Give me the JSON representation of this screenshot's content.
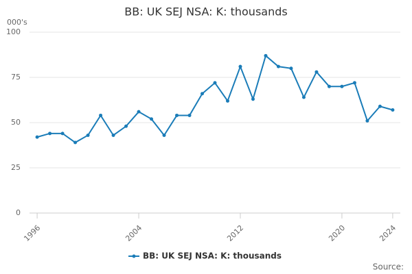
{
  "chart_data": {
    "type": "line",
    "title": "BB: UK SEJ NSA: K: thousands",
    "y_unit_label": "000's",
    "source_label": "Source:",
    "x": [
      1996,
      1997,
      1998,
      1999,
      2000,
      2001,
      2002,
      2003,
      2004,
      2005,
      2006,
      2007,
      2008,
      2009,
      2010,
      2011,
      2012,
      2013,
      2014,
      2015,
      2016,
      2017,
      2018,
      2019,
      2020,
      2021,
      2022,
      2023,
      2024
    ],
    "series": [
      {
        "name": "BB: UK SEJ NSA: K: thousands",
        "color": "#1a7cb8",
        "values": [
          42,
          44,
          44,
          39,
          43,
          54,
          43,
          48,
          56,
          52,
          43,
          54,
          54,
          66,
          72,
          62,
          81,
          63,
          87,
          81,
          80,
          64,
          78,
          70,
          70,
          72,
          51,
          59,
          57
        ]
      }
    ],
    "xlim": [
      1995.4,
      2024.6
    ],
    "xticks": [
      1996,
      2004,
      2012,
      2020,
      2024
    ],
    "ylim": [
      0,
      100
    ],
    "yticks": [
      0,
      25,
      50,
      75,
      100
    ],
    "grid": true
  }
}
